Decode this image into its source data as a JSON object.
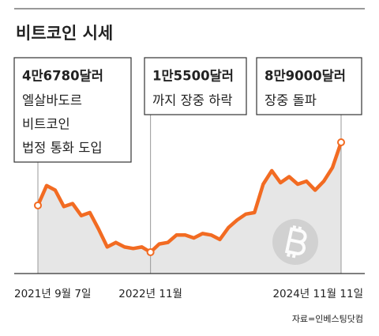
{
  "chart_data": {
    "type": "line",
    "title": "비트코인 시세",
    "categories": [
      "2021년 9월 7일",
      null,
      null,
      null,
      null,
      null,
      null,
      null,
      null,
      null,
      null,
      null,
      null,
      "2022년 11월",
      null,
      null,
      null,
      null,
      null,
      null,
      null,
      null,
      null,
      null,
      null,
      null,
      null,
      null,
      null,
      null,
      null,
      null,
      null,
      null,
      null,
      "2024년 11월 11일"
    ],
    "series": [
      {
        "name": "비트코인",
        "color": "#f26b22",
        "values": [
          46780,
          60000,
          57000,
          46000,
          48000,
          40000,
          42000,
          31000,
          19000,
          22000,
          19000,
          18000,
          19000,
          15500,
          21000,
          22000,
          27000,
          27000,
          25000,
          28000,
          27000,
          24000,
          32000,
          37000,
          41000,
          42000,
          61000,
          70000,
          62000,
          66000,
          61000,
          63000,
          57000,
          63000,
          72000,
          89000
        ]
      }
    ],
    "annotations": [
      {
        "headline": "4만6780달러",
        "lines": [
          "엘살바도르",
          "비트코인",
          "법정 통화 도입"
        ]
      },
      {
        "headline": "1만5500달러",
        "lines": [
          "까지 장중 하락"
        ]
      },
      {
        "headline": "8만9000달러",
        "lines": [
          "장중 돌파"
        ]
      }
    ],
    "source": "자료=인베스팅닷컴"
  }
}
